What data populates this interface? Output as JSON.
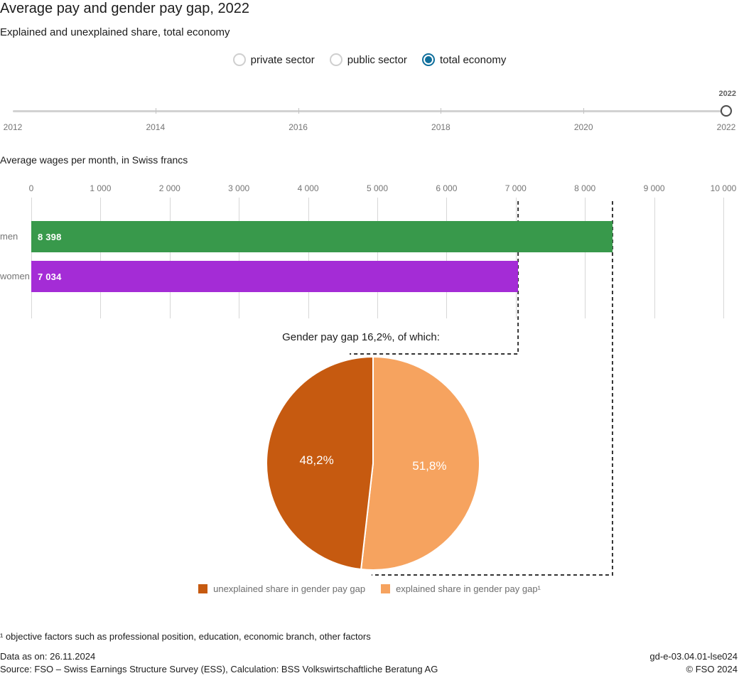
{
  "header": {
    "title": "Average pay and gender pay gap, 2022",
    "subtitle": "Explained and unexplained share, total economy"
  },
  "sector_selector": {
    "options": [
      {
        "label": "private sector",
        "selected": false
      },
      {
        "label": "public sector",
        "selected": false
      },
      {
        "label": "total economy",
        "selected": true
      }
    ]
  },
  "year_slider": {
    "min": 2012,
    "max": 2022,
    "selected_year": "2022",
    "tick_labels": [
      "2012",
      "2014",
      "2016",
      "2018",
      "2020",
      "2022"
    ]
  },
  "bar_section": {
    "title": "Average wages per month, in Swiss francs",
    "axis_ticks": [
      "0",
      "1 000",
      "2 000",
      "3 000",
      "4 000",
      "5 000",
      "6 000",
      "7 000",
      "8 000",
      "9 000",
      "10 000"
    ],
    "axis_max": 10000,
    "bars": [
      {
        "label": "men",
        "value": 8398,
        "display": "8 398",
        "color": "#38994b"
      },
      {
        "label": "women",
        "value": 7034,
        "display": "7 034",
        "color": "#a42cd6"
      }
    ]
  },
  "pie_section": {
    "title": "Gender pay gap 16,2%, of which:",
    "slices": [
      {
        "name": "explained share in gender pay gap",
        "pct": 51.8,
        "display": "51,8%",
        "color": "#f6a35f"
      },
      {
        "name": "unexplained share in gender pay gap",
        "pct": 48.2,
        "display": "48,2%",
        "color": "#c65a10"
      }
    ]
  },
  "legend": {
    "items": [
      {
        "label": "unexplained share in gender pay gap",
        "color": "#c65a10"
      },
      {
        "label": "explained share in gender pay gap¹",
        "color": "#f6a35f"
      }
    ]
  },
  "footnote": "¹ objective factors such as professional position, education, economic branch, other factors",
  "footer": {
    "data_as_on": "Data as on: 26.11.2024",
    "source": "Source: FSO – Swiss Earnings Structure Survey (ESS), Calculation: BSS Volkswirtschaftliche Beratung AG",
    "reference": "gd-e-03.04.01-lse024",
    "copyright": "© FSO 2024"
  },
  "colors": {
    "radio_selected": "#0f6f9c",
    "radio_unselected_border": "#cfcfcf",
    "bar_men": "#38994b",
    "bar_women": "#a42cd6",
    "pie_unexplained": "#c65a10",
    "pie_explained": "#f6a35f",
    "dashed_line": "#333333",
    "gridline": "#d7d7d7",
    "muted_text": "#757575"
  },
  "chart_data": [
    {
      "type": "bar",
      "orientation": "horizontal",
      "title": "Average wages per month, in Swiss francs",
      "categories": [
        "men",
        "women"
      ],
      "values": [
        8398,
        7034
      ],
      "data_labels": [
        "8 398",
        "7 034"
      ],
      "xlabel": "",
      "ylabel": "",
      "xlim": [
        0,
        10000
      ],
      "x_tick_step": 1000,
      "grid": true,
      "colors": [
        "#38994b",
        "#a42cd6"
      ]
    },
    {
      "type": "pie",
      "title": "Gender pay gap 16,2%, of which:",
      "labels": [
        "explained share in gender pay gap¹",
        "unexplained share in gender pay gap"
      ],
      "values": [
        51.8,
        48.2
      ],
      "data_labels": [
        "51,8%",
        "48,2%"
      ],
      "colors": [
        "#f6a35f",
        "#c65a10"
      ],
      "start_angle": "12-oclock",
      "direction": "clockwise",
      "legend_position": "bottom",
      "annotation_gap_value": "16,2%"
    }
  ]
}
